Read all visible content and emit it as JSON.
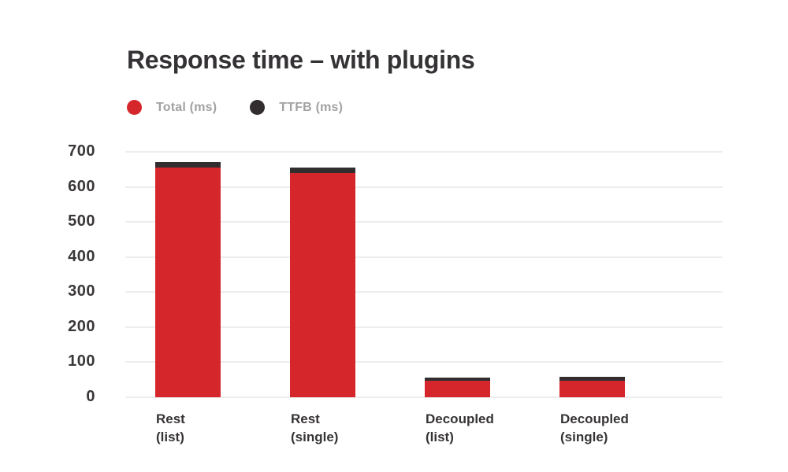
{
  "chart_data": {
    "type": "bar",
    "stacked": true,
    "title": "Response time – with plugins",
    "categories": [
      [
        "Rest",
        "(list)"
      ],
      [
        "Rest",
        "(single)"
      ],
      [
        "Decoupled",
        "(list)"
      ],
      [
        "Decoupled",
        "(single)"
      ]
    ],
    "series": [
      {
        "name": "Total (ms)",
        "color": "#d5262b",
        "values": [
          655,
          640,
          46,
          48
        ]
      },
      {
        "name": "TTFB (ms)",
        "color": "#322e2f",
        "values": [
          15,
          15,
          9,
          10
        ]
      }
    ],
    "xlabel": "",
    "ylabel": "",
    "ylim": [
      0,
      700
    ],
    "yticks": [
      0,
      100,
      200,
      300,
      400,
      500,
      600,
      700
    ],
    "grid": true,
    "legend_position": "top-left",
    "colors": {
      "title_text": "#343234",
      "axis_tick_text": "#3a3738",
      "category_text": "#363334",
      "legend_text": "#a3a2a3",
      "gridline": "#ededed",
      "background": "#ffffff"
    }
  }
}
